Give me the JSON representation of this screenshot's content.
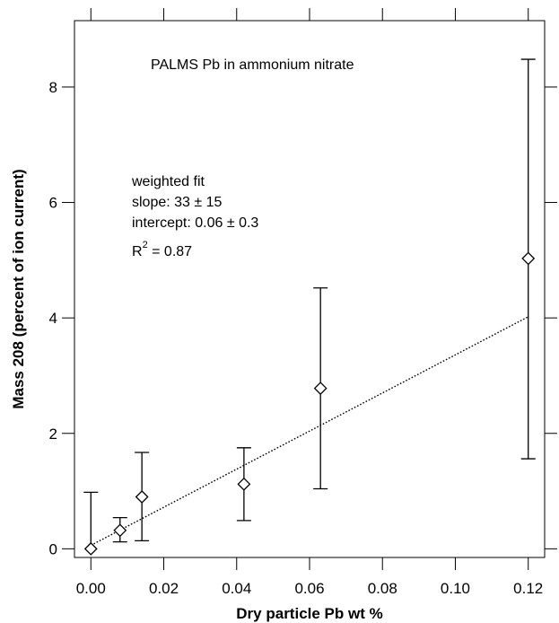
{
  "chart_data": {
    "type": "scatter",
    "title": "PALMS Pb in ammonium nitrate",
    "xlabel": "Dry particle Pb wt %",
    "ylabel": "Mass 208 (percent of ion current)",
    "xlim": [
      -0.0045,
      0.1245
    ],
    "ylim": [
      -0.15,
      9.15
    ],
    "x_ticks": [
      "0.00",
      "0.02",
      "0.04",
      "0.06",
      "0.08",
      "0.10",
      "0.12"
    ],
    "y_ticks": [
      "0",
      "2",
      "4",
      "6",
      "8"
    ],
    "grid": false,
    "series": [
      {
        "marker": "diamond",
        "points": [
          {
            "x": 0.0,
            "y": 0.0,
            "yerr_low": 0.0,
            "yerr_high": 0.98
          },
          {
            "x": 0.008,
            "y": 0.32,
            "yerr_low": 0.12,
            "yerr_high": 0.54
          },
          {
            "x": 0.014,
            "y": 0.9,
            "yerr_low": 0.14,
            "yerr_high": 1.67
          },
          {
            "x": 0.042,
            "y": 1.12,
            "yerr_low": 0.49,
            "yerr_high": 1.75
          },
          {
            "x": 0.063,
            "y": 2.78,
            "yerr_low": 1.04,
            "yerr_high": 4.52
          },
          {
            "x": 0.12,
            "y": 5.03,
            "yerr_low": 1.56,
            "yerr_high": 8.48
          }
        ]
      }
    ],
    "fit_line": {
      "slope": 33,
      "intercept": 0.06,
      "x_range": [
        0.0,
        0.12
      ],
      "style": "dotted"
    },
    "annotation": {
      "line1": "weighted fit",
      "line2": "slope: 33 ± 15",
      "line3": "intercept: 0.06 ± 0.3",
      "line4_base": "R",
      "line4_sup": "2",
      "line4_rest": " = 0.87"
    }
  }
}
